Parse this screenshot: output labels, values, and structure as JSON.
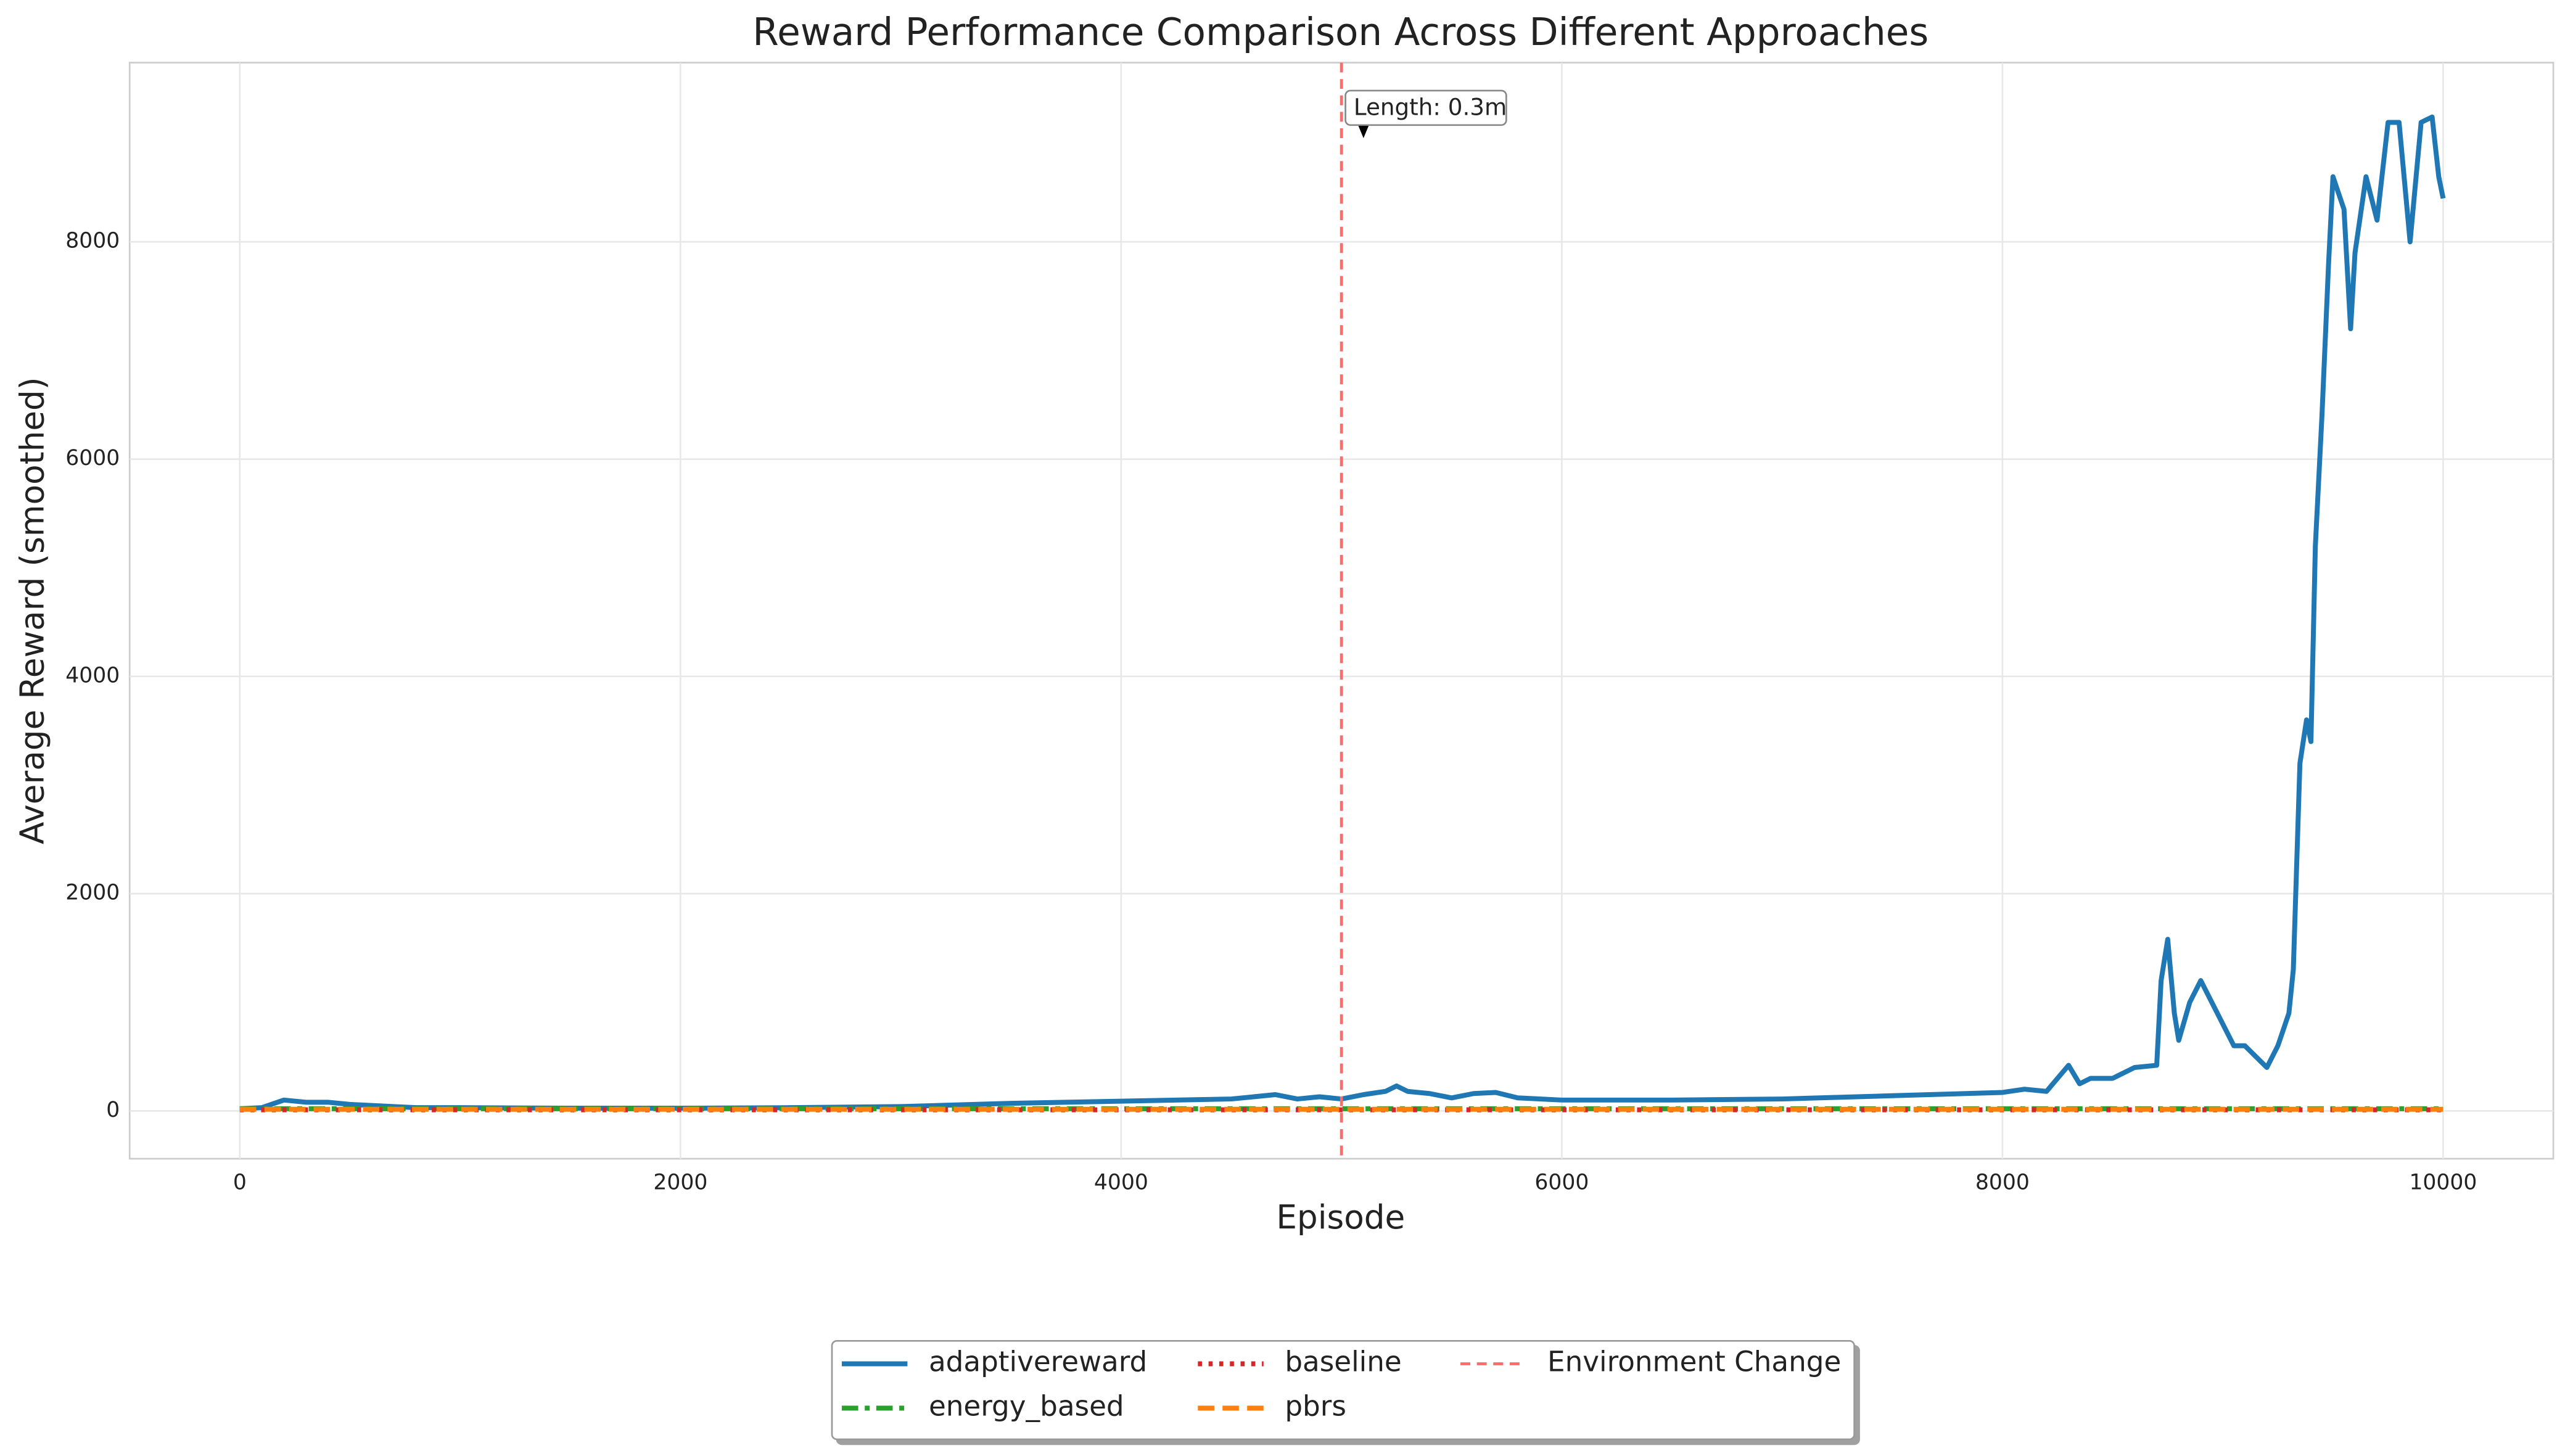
{
  "chart_data": {
    "type": "line",
    "title": "Reward Performance Comparison Across Different Approaches",
    "xlabel": "Episode",
    "ylabel": "Average Reward (smoothed)",
    "xlim": [
      -500,
      10500
    ],
    "ylim": [
      -440,
      9650
    ],
    "xticks": [
      0,
      2000,
      4000,
      6000,
      8000,
      10000
    ],
    "yticks": [
      0,
      2000,
      4000,
      6000,
      8000
    ],
    "grid": true,
    "legend": "lower center",
    "series": [
      {
        "name": "adaptivereward",
        "color": "#1f77b4",
        "style": "solid",
        "x": [
          0,
          100,
          200,
          300,
          400,
          500,
          600,
          800,
          1000,
          1500,
          2000,
          2500,
          3000,
          3500,
          4000,
          4500,
          4700,
          4800,
          4900,
          5000,
          5100,
          5200,
          5250,
          5300,
          5400,
          5500,
          5600,
          5700,
          5800,
          6000,
          6500,
          7000,
          7500,
          8000,
          8100,
          8200,
          8250,
          8300,
          8350,
          8400,
          8500,
          8600,
          8700,
          8720,
          8750,
          8780,
          8800,
          8850,
          8900,
          8950,
          9000,
          9050,
          9100,
          9150,
          9200,
          9250,
          9300,
          9320,
          9350,
          9380,
          9400,
          9420,
          9450,
          9480,
          9500,
          9550,
          9580,
          9600,
          9650,
          9700,
          9750,
          9800,
          9850,
          9900,
          9950,
          9980,
          10000
        ],
        "values": [
          20,
          30,
          100,
          80,
          80,
          60,
          50,
          30,
          30,
          25,
          25,
          30,
          40,
          70,
          90,
          110,
          150,
          110,
          130,
          110,
          150,
          180,
          230,
          180,
          160,
          120,
          160,
          170,
          120,
          100,
          100,
          110,
          140,
          170,
          200,
          180,
          300,
          420,
          250,
          300,
          300,
          400,
          420,
          1200,
          1580,
          900,
          650,
          1000,
          1200,
          1000,
          800,
          600,
          600,
          500,
          400,
          600,
          900,
          1300,
          3200,
          3600,
          3400,
          5200,
          6400,
          7800,
          8600,
          8300,
          7200,
          7900,
          8600,
          8200,
          9100,
          9100,
          8000,
          9100,
          9150,
          8600,
          8400
        ]
      },
      {
        "name": "energy_based",
        "color": "#2ca02c",
        "style": "dashdot",
        "x": [
          0,
          10000
        ],
        "values": [
          20,
          20
        ]
      },
      {
        "name": "baseline",
        "color": "#d62728",
        "style": "dotted",
        "x": [
          0,
          10000
        ],
        "values": [
          10,
          10
        ]
      },
      {
        "name": "pbrs",
        "color": "#ff7f0e",
        "style": "dashed",
        "x": [
          0,
          10000
        ],
        "values": [
          15,
          15
        ]
      }
    ],
    "vline": {
      "x": 5000,
      "label": "Environment Change",
      "color": "#ff6b6b"
    },
    "annotations": [
      {
        "text": "Length: 0.3m",
        "x": 5100,
        "y": 9000
      }
    ]
  }
}
